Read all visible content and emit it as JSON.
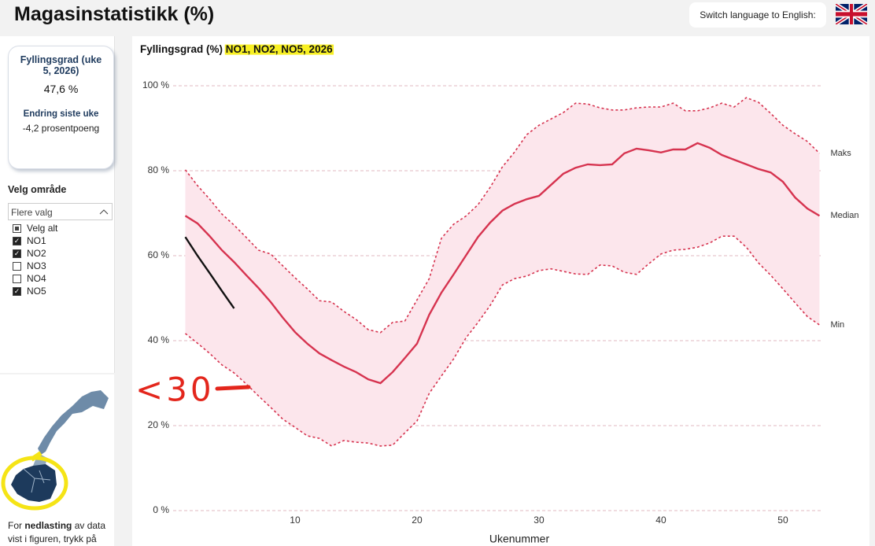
{
  "header": {
    "title": "Magasinstatistikk (%)",
    "language_button": "Switch language to English:"
  },
  "card": {
    "title": "Fyllingsgrad (uke 5, 2026)",
    "value": "47,6 %",
    "change_title": "Endring siste uke",
    "change_value": "-4,2 prosentpoeng"
  },
  "filter": {
    "title": "Velg område",
    "dropdown": "Flere valg",
    "options": [
      {
        "label": "Velg alt",
        "checked": "partial"
      },
      {
        "label": "NO1",
        "checked": true
      },
      {
        "label": "NO2",
        "checked": true
      },
      {
        "label": "NO3",
        "checked": false
      },
      {
        "label": "NO4",
        "checked": false
      },
      {
        "label": "NO5",
        "checked": true
      }
    ]
  },
  "footer_text": {
    "before": "For ",
    "bold": "nedlasting",
    "after": " av data vist i figuren, trykk på"
  },
  "chart_data": {
    "type": "line",
    "title": "Fyllingsgrad (%)",
    "title_selection": "NO1, NO2, NO5, 2026",
    "x_label": "Ukenummer",
    "annotation": "<30",
    "band_color": "#fce6ec",
    "x": [
      1,
      2,
      3,
      4,
      5,
      6,
      7,
      8,
      9,
      10,
      11,
      12,
      13,
      14,
      15,
      16,
      17,
      18,
      19,
      20,
      21,
      22,
      23,
      24,
      25,
      26,
      27,
      28,
      29,
      30,
      31,
      32,
      33,
      34,
      35,
      36,
      37,
      38,
      39,
      40,
      41,
      42,
      43,
      44,
      45,
      46,
      47,
      48,
      49,
      50,
      51,
      52,
      53
    ],
    "xlim": [
      0,
      53.1
    ],
    "xticks": [
      10,
      20,
      30,
      40,
      50
    ],
    "ylim": [
      0,
      100
    ],
    "yticks": [
      {
        "value": 0,
        "label": "0 %"
      },
      {
        "value": 20,
        "label": "20 %"
      },
      {
        "value": 40,
        "label": "40 %"
      },
      {
        "value": 60,
        "label": "60 %"
      },
      {
        "value": 80,
        "label": "80 %"
      },
      {
        "value": 100,
        "label": "100 %"
      }
    ],
    "grid": true,
    "series": [
      {
        "name": "Maks",
        "color": "#d6334f",
        "style": "dashed",
        "values": [
          80.2,
          76.5,
          73.3,
          69.8,
          67.2,
          64.3,
          61.3,
          60.4,
          57.6,
          54.8,
          52.2,
          49.4,
          49.1,
          46.9,
          45.0,
          42.6,
          41.9,
          44.3,
          44.6,
          49.6,
          54.6,
          64.1,
          67.4,
          69.3,
          72.0,
          76.1,
          80.9,
          84.4,
          88.5,
          90.7,
          92.2,
          93.7,
          95.9,
          95.7,
          94.8,
          94.3,
          94.3,
          94.8,
          95.0,
          95.0,
          95.9,
          94.1,
          94.1,
          94.8,
          95.9,
          95.0,
          97.2,
          96.1,
          93.5,
          90.7,
          88.7,
          86.9,
          84.1
        ]
      },
      {
        "name": "Median",
        "color": "#d6334f",
        "style": "solid",
        "values": [
          69.4,
          67.6,
          64.6,
          61.3,
          58.5,
          55.4,
          52.4,
          49.1,
          45.4,
          42.0,
          39.3,
          37.0,
          35.4,
          33.9,
          32.6,
          30.9,
          30.0,
          32.6,
          35.9,
          39.3,
          46.1,
          51.3,
          55.6,
          60.0,
          64.4,
          67.8,
          70.6,
          72.2,
          73.3,
          74.1,
          76.7,
          79.3,
          80.7,
          81.5,
          81.3,
          81.5,
          84.1,
          85.2,
          84.8,
          84.3,
          85.0,
          85.0,
          86.5,
          85.4,
          83.7,
          82.6,
          81.5,
          80.4,
          79.6,
          77.4,
          73.7,
          71.1,
          69.4
        ]
      },
      {
        "name": "Min",
        "color": "#d6334f",
        "style": "dashed",
        "values": [
          41.7,
          39.4,
          37.0,
          34.3,
          32.4,
          29.8,
          27.0,
          24.3,
          21.5,
          19.6,
          17.6,
          17.0,
          15.2,
          16.5,
          16.1,
          15.9,
          15.2,
          15.4,
          18.3,
          21.1,
          27.6,
          31.7,
          35.7,
          40.6,
          44.3,
          48.3,
          53.1,
          54.6,
          55.2,
          56.5,
          56.9,
          56.3,
          55.7,
          55.6,
          57.8,
          57.6,
          56.1,
          55.6,
          58.1,
          60.4,
          61.3,
          61.5,
          62.0,
          63.0,
          64.6,
          64.6,
          62.0,
          58.3,
          55.4,
          52.2,
          48.9,
          45.7,
          43.7
        ]
      },
      {
        "color": "#111111",
        "style": "solid",
        "values": [
          64.4,
          60.0,
          55.9,
          51.7,
          47.6,
          null,
          null,
          null,
          null,
          null,
          null,
          null,
          null,
          null,
          null,
          null,
          null,
          null,
          null,
          null,
          null,
          null,
          null,
          null,
          null,
          null,
          null,
          null,
          null,
          null,
          null,
          null,
          null,
          null,
          null,
          null,
          null,
          null,
          null,
          null,
          null,
          null,
          null,
          null,
          null,
          null,
          null,
          null,
          null,
          null,
          null,
          null,
          null
        ]
      }
    ]
  }
}
